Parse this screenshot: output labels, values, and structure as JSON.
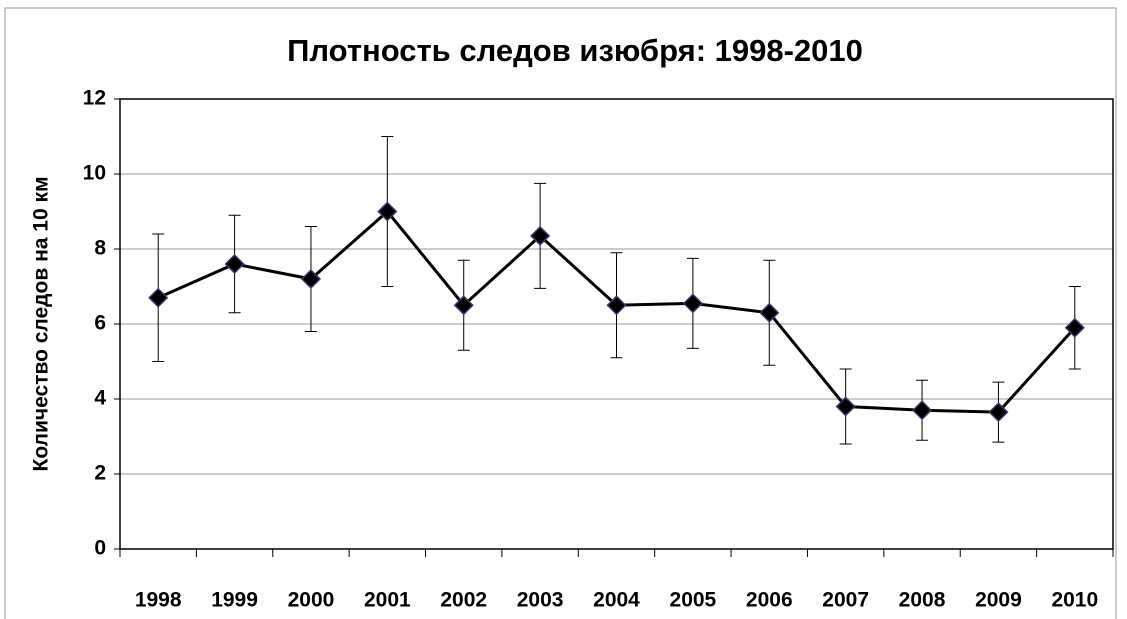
{
  "chart_data": {
    "type": "line",
    "title": "Плотность следов изюбря: 1998-2010",
    "y_label": "Количество следов на 10 км",
    "categories": [
      "1998",
      "1999",
      "2000",
      "2001",
      "2002",
      "2003",
      "2004",
      "2005",
      "2006",
      "2007",
      "2008",
      "2009",
      "2010"
    ],
    "series": [
      {
        "color": "#000000",
        "values": [
          6.7,
          7.6,
          7.2,
          9.0,
          6.5,
          8.35,
          6.5,
          6.55,
          6.3,
          3.8,
          3.7,
          3.65,
          5.9
        ],
        "errors": [
          1.7,
          1.3,
          1.4,
          2.0,
          1.2,
          1.4,
          1.4,
          1.2,
          1.4,
          1.0,
          0.8,
          0.8,
          1.1
        ]
      }
    ],
    "ylim": [
      0,
      12
    ],
    "yticks": [
      0,
      2,
      4,
      6,
      8,
      10,
      12
    ],
    "grid": true
  }
}
